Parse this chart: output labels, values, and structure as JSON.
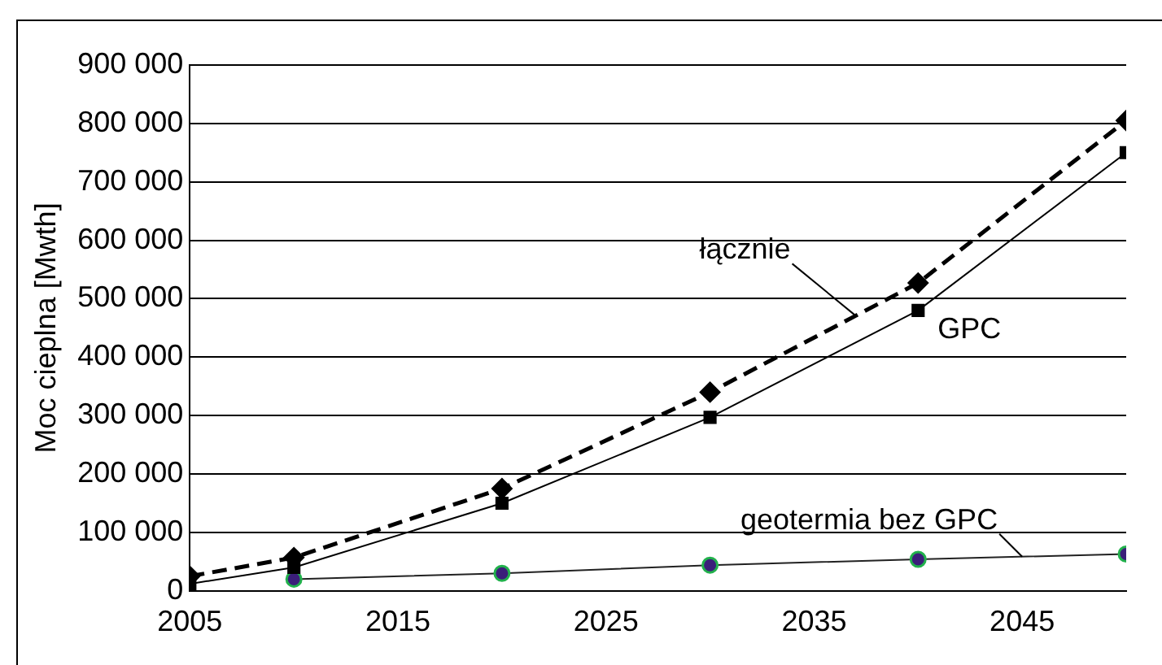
{
  "chart_data": {
    "type": "line",
    "ylabel": "Moc cieplna [Mwth]",
    "x": [
      2005,
      2010,
      2020,
      2030,
      2040,
      2050
    ],
    "xlim": [
      2005,
      2050
    ],
    "xticks": [
      2005,
      2015,
      2025,
      2035,
      2045
    ],
    "ylim": [
      0,
      900000
    ],
    "yticks": [
      {
        "value": 0,
        "label": "0"
      },
      {
        "value": 100000,
        "label": "100 000"
      },
      {
        "value": 200000,
        "label": "200 000"
      },
      {
        "value": 300000,
        "label": "300 000"
      },
      {
        "value": 400000,
        "label": "400 000"
      },
      {
        "value": 500000,
        "label": "500 000"
      },
      {
        "value": 600000,
        "label": "600 000"
      },
      {
        "value": 700000,
        "label": "700 000"
      },
      {
        "value": 800000,
        "label": "800 000"
      },
      {
        "value": 900000,
        "label": "900 000"
      }
    ],
    "grid": "y",
    "legend": false,
    "series": [
      {
        "name": "łącznie",
        "color": "#000000",
        "marker": "diamond",
        "line_style": "dashed",
        "values": [
          25000,
          57000,
          175000,
          340000,
          527000,
          805000
        ]
      },
      {
        "name": "GPC",
        "color": "#000000",
        "marker": "square",
        "line_style": "solid",
        "values": [
          12000,
          40000,
          150000,
          297000,
          480000,
          750000
        ]
      },
      {
        "name": "geotermia bez GPC",
        "color": "#3b1e7a",
        "marker": "circle",
        "line_style": "solid",
        "values": [
          null,
          20000,
          30000,
          44000,
          54000,
          63000
        ]
      }
    ]
  }
}
